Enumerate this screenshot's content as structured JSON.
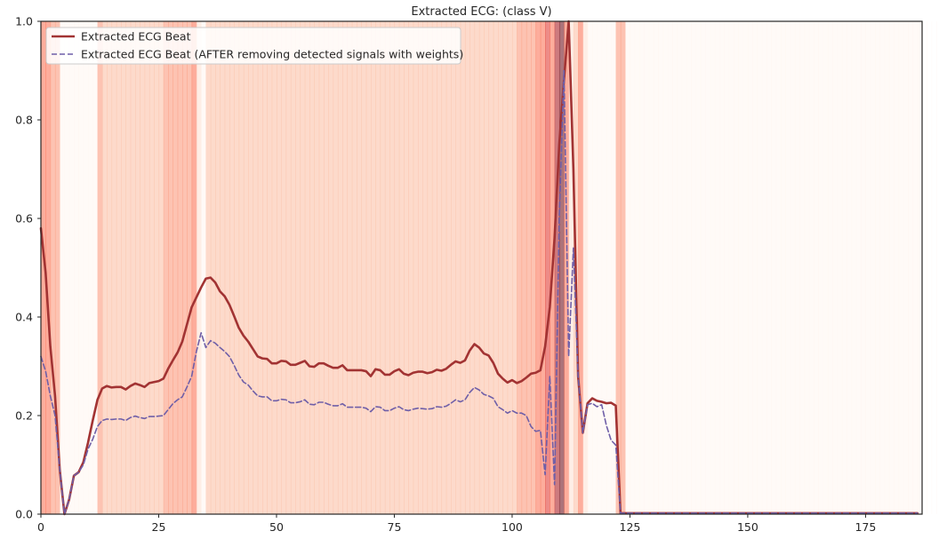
{
  "chart_data": {
    "type": "line",
    "title": "Extracted ECG: (class V)",
    "xlabel": "",
    "ylabel": "",
    "xlim": [
      0,
      187
    ],
    "ylim": [
      0,
      1.0
    ],
    "x_ticks": [
      0,
      25,
      50,
      75,
      100,
      125,
      150,
      175
    ],
    "y_ticks": [
      0.0,
      0.2,
      0.4,
      0.6,
      0.8,
      1.0
    ],
    "grid": false,
    "legend_position": "top-left",
    "series": [
      {
        "name": "Extracted ECG Beat",
        "color": "#a23333",
        "style": "solid",
        "points": [
          [
            0,
            0.58
          ],
          [
            1,
            0.49
          ],
          [
            2,
            0.34
          ],
          [
            3,
            0.24
          ],
          [
            4,
            0.09
          ],
          [
            5,
            0.0
          ],
          [
            6,
            0.03
          ],
          [
            7,
            0.078
          ],
          [
            8,
            0.085
          ],
          [
            9,
            0.105
          ],
          [
            10,
            0.145
          ],
          [
            11,
            0.19
          ],
          [
            12,
            0.232
          ],
          [
            13,
            0.255
          ],
          [
            14,
            0.26
          ],
          [
            15,
            0.257
          ],
          [
            16,
            0.258
          ],
          [
            17,
            0.258
          ],
          [
            18,
            0.253
          ],
          [
            19,
            0.26
          ],
          [
            20,
            0.265
          ],
          [
            21,
            0.262
          ],
          [
            22,
            0.258
          ],
          [
            23,
            0.266
          ],
          [
            24,
            0.268
          ],
          [
            25,
            0.27
          ],
          [
            26,
            0.275
          ],
          [
            27,
            0.295
          ],
          [
            28,
            0.312
          ],
          [
            29,
            0.328
          ],
          [
            30,
            0.35
          ],
          [
            31,
            0.385
          ],
          [
            32,
            0.42
          ],
          [
            33,
            0.44
          ],
          [
            34,
            0.46
          ],
          [
            35,
            0.478
          ],
          [
            36,
            0.48
          ],
          [
            37,
            0.47
          ],
          [
            38,
            0.452
          ],
          [
            39,
            0.442
          ],
          [
            40,
            0.425
          ],
          [
            41,
            0.402
          ],
          [
            42,
            0.378
          ],
          [
            43,
            0.362
          ],
          [
            44,
            0.35
          ],
          [
            45,
            0.335
          ],
          [
            46,
            0.32
          ],
          [
            47,
            0.316
          ],
          [
            48,
            0.315
          ],
          [
            49,
            0.306
          ],
          [
            50,
            0.306
          ],
          [
            51,
            0.311
          ],
          [
            52,
            0.31
          ],
          [
            53,
            0.303
          ],
          [
            54,
            0.303
          ],
          [
            55,
            0.307
          ],
          [
            56,
            0.311
          ],
          [
            57,
            0.3
          ],
          [
            58,
            0.299
          ],
          [
            59,
            0.306
          ],
          [
            60,
            0.306
          ],
          [
            61,
            0.301
          ],
          [
            62,
            0.297
          ],
          [
            63,
            0.297
          ],
          [
            64,
            0.302
          ],
          [
            65,
            0.292
          ],
          [
            66,
            0.292
          ],
          [
            67,
            0.292
          ],
          [
            68,
            0.292
          ],
          [
            69,
            0.29
          ],
          [
            70,
            0.28
          ],
          [
            71,
            0.294
          ],
          [
            72,
            0.292
          ],
          [
            73,
            0.283
          ],
          [
            74,
            0.283
          ],
          [
            75,
            0.29
          ],
          [
            76,
            0.294
          ],
          [
            77,
            0.285
          ],
          [
            78,
            0.282
          ],
          [
            79,
            0.287
          ],
          [
            80,
            0.289
          ],
          [
            81,
            0.289
          ],
          [
            82,
            0.286
          ],
          [
            83,
            0.288
          ],
          [
            84,
            0.293
          ],
          [
            85,
            0.291
          ],
          [
            86,
            0.295
          ],
          [
            87,
            0.303
          ],
          [
            88,
            0.31
          ],
          [
            89,
            0.307
          ],
          [
            90,
            0.312
          ],
          [
            91,
            0.332
          ],
          [
            92,
            0.345
          ],
          [
            93,
            0.338
          ],
          [
            94,
            0.326
          ],
          [
            95,
            0.322
          ],
          [
            96,
            0.307
          ],
          [
            97,
            0.285
          ],
          [
            98,
            0.275
          ],
          [
            99,
            0.267
          ],
          [
            100,
            0.272
          ],
          [
            101,
            0.266
          ],
          [
            102,
            0.27
          ],
          [
            103,
            0.277
          ],
          [
            104,
            0.285
          ],
          [
            105,
            0.287
          ],
          [
            106,
            0.292
          ],
          [
            107,
            0.34
          ],
          [
            108,
            0.42
          ],
          [
            109,
            0.56
          ],
          [
            110,
            0.75
          ],
          [
            111,
            0.88
          ],
          [
            112,
            1.0
          ],
          [
            113,
            0.7
          ],
          [
            114,
            0.28
          ],
          [
            115,
            0.165
          ],
          [
            116,
            0.225
          ],
          [
            117,
            0.235
          ],
          [
            118,
            0.23
          ],
          [
            119,
            0.228
          ],
          [
            120,
            0.225
          ],
          [
            121,
            0.226
          ],
          [
            122,
            0.22
          ],
          [
            123,
            0.002
          ],
          [
            186,
            0.002
          ]
        ]
      },
      {
        "name": "Extracted ECG Beat (AFTER removing detected signals with weights)",
        "color": "#6f5fa8",
        "style": "dashed",
        "points": [
          [
            0,
            0.32
          ],
          [
            1,
            0.29
          ],
          [
            2,
            0.24
          ],
          [
            3,
            0.2
          ],
          [
            4,
            0.09
          ],
          [
            5,
            0.0
          ],
          [
            6,
            0.03
          ],
          [
            7,
            0.078
          ],
          [
            8,
            0.085
          ],
          [
            9,
            0.1
          ],
          [
            10,
            0.132
          ],
          [
            11,
            0.152
          ],
          [
            12,
            0.178
          ],
          [
            13,
            0.19
          ],
          [
            14,
            0.193
          ],
          [
            15,
            0.192
          ],
          [
            16,
            0.193
          ],
          [
            17,
            0.193
          ],
          [
            18,
            0.19
          ],
          [
            19,
            0.196
          ],
          [
            20,
            0.199
          ],
          [
            21,
            0.196
          ],
          [
            22,
            0.194
          ],
          [
            23,
            0.198
          ],
          [
            24,
            0.198
          ],
          [
            25,
            0.199
          ],
          [
            26,
            0.2
          ],
          [
            27,
            0.212
          ],
          [
            28,
            0.224
          ],
          [
            29,
            0.232
          ],
          [
            30,
            0.238
          ],
          [
            31,
            0.258
          ],
          [
            32,
            0.28
          ],
          [
            33,
            0.33
          ],
          [
            34,
            0.368
          ],
          [
            35,
            0.338
          ],
          [
            36,
            0.352
          ],
          [
            37,
            0.347
          ],
          [
            38,
            0.338
          ],
          [
            39,
            0.33
          ],
          [
            40,
            0.32
          ],
          [
            41,
            0.302
          ],
          [
            42,
            0.282
          ],
          [
            43,
            0.268
          ],
          [
            44,
            0.262
          ],
          [
            45,
            0.25
          ],
          [
            46,
            0.24
          ],
          [
            47,
            0.238
          ],
          [
            48,
            0.238
          ],
          [
            49,
            0.23
          ],
          [
            50,
            0.23
          ],
          [
            51,
            0.233
          ],
          [
            52,
            0.232
          ],
          [
            53,
            0.226
          ],
          [
            54,
            0.226
          ],
          [
            55,
            0.228
          ],
          [
            56,
            0.232
          ],
          [
            57,
            0.223
          ],
          [
            58,
            0.222
          ],
          [
            59,
            0.227
          ],
          [
            60,
            0.227
          ],
          [
            61,
            0.223
          ],
          [
            62,
            0.22
          ],
          [
            63,
            0.22
          ],
          [
            64,
            0.224
          ],
          [
            65,
            0.217
          ],
          [
            66,
            0.217
          ],
          [
            67,
            0.217
          ],
          [
            68,
            0.217
          ],
          [
            69,
            0.215
          ],
          [
            70,
            0.208
          ],
          [
            71,
            0.218
          ],
          [
            72,
            0.217
          ],
          [
            73,
            0.21
          ],
          [
            74,
            0.21
          ],
          [
            75,
            0.215
          ],
          [
            76,
            0.218
          ],
          [
            77,
            0.212
          ],
          [
            78,
            0.21
          ],
          [
            79,
            0.213
          ],
          [
            80,
            0.215
          ],
          [
            81,
            0.214
          ],
          [
            82,
            0.213
          ],
          [
            83,
            0.214
          ],
          [
            84,
            0.218
          ],
          [
            85,
            0.217
          ],
          [
            86,
            0.219
          ],
          [
            87,
            0.225
          ],
          [
            88,
            0.232
          ],
          [
            89,
            0.228
          ],
          [
            90,
            0.232
          ],
          [
            91,
            0.247
          ],
          [
            92,
            0.257
          ],
          [
            93,
            0.252
          ],
          [
            94,
            0.243
          ],
          [
            95,
            0.24
          ],
          [
            96,
            0.235
          ],
          [
            97,
            0.218
          ],
          [
            98,
            0.212
          ],
          [
            99,
            0.205
          ],
          [
            100,
            0.21
          ],
          [
            101,
            0.205
          ],
          [
            102,
            0.205
          ],
          [
            103,
            0.2
          ],
          [
            104,
            0.178
          ],
          [
            105,
            0.168
          ],
          [
            106,
            0.17
          ],
          [
            107,
            0.08
          ],
          [
            108,
            0.28
          ],
          [
            109,
            0.06
          ],
          [
            110,
            0.6
          ],
          [
            111,
            0.9
          ],
          [
            112,
            0.32
          ],
          [
            113,
            0.54
          ],
          [
            114,
            0.28
          ],
          [
            115,
            0.165
          ],
          [
            116,
            0.222
          ],
          [
            117,
            0.225
          ],
          [
            118,
            0.218
          ],
          [
            119,
            0.222
          ],
          [
            120,
            0.18
          ],
          [
            121,
            0.15
          ],
          [
            122,
            0.14
          ],
          [
            123,
            0.002
          ],
          [
            186,
            0.002
          ]
        ]
      }
    ],
    "heatmap_colors": [
      "#fff5f0",
      "#fee0d2",
      "#fcbba1",
      "#fc9272",
      "#fb6a4a",
      "#de2d26",
      "#a50f15",
      "#67000d"
    ],
    "heatmap_alpha": 0.55,
    "background_weights": [
      0.5,
      0.5,
      0.45,
      0.45,
      0.1,
      0.05,
      0.05,
      0.05,
      0.05,
      0.05,
      0.05,
      0.1,
      0.4,
      0.35,
      0.3,
      0.3,
      0.3,
      0.3,
      0.3,
      0.3,
      0.3,
      0.3,
      0.3,
      0.32,
      0.35,
      0.35,
      0.38,
      0.4,
      0.4,
      0.4,
      0.45,
      0.45,
      0.5,
      0.15,
      0.05,
      0.3,
      0.3,
      0.3,
      0.3,
      0.3,
      0.3,
      0.3,
      0.3,
      0.3,
      0.3,
      0.3,
      0.3,
      0.3,
      0.3,
      0.3,
      0.3,
      0.3,
      0.3,
      0.3,
      0.3,
      0.3,
      0.3,
      0.3,
      0.3,
      0.3,
      0.3,
      0.3,
      0.3,
      0.3,
      0.3,
      0.3,
      0.3,
      0.3,
      0.3,
      0.3,
      0.3,
      0.3,
      0.3,
      0.3,
      0.3,
      0.3,
      0.3,
      0.3,
      0.3,
      0.3,
      0.3,
      0.3,
      0.3,
      0.3,
      0.3,
      0.3,
      0.3,
      0.3,
      0.3,
      0.3,
      0.3,
      0.3,
      0.3,
      0.3,
      0.3,
      0.3,
      0.3,
      0.3,
      0.32,
      0.35,
      0.35,
      0.38,
      0.4,
      0.4,
      0.45,
      0.5,
      0.6,
      0.7,
      0.55,
      0.8,
      0.95,
      0.55,
      0.2,
      0.35,
      0.5,
      0.15,
      0.1,
      0.05,
      0.05,
      0.05,
      0.05,
      0.1,
      0.45,
      0.45,
      0.02,
      0.02,
      0.02,
      0.02,
      0.02,
      0.02,
      0.02,
      0.02,
      0.02,
      0.02,
      0.02,
      0.02,
      0.02,
      0.02,
      0.02,
      0.02,
      0.02,
      0.02,
      0.02,
      0.02,
      0.02,
      0.02,
      0.02,
      0.02,
      0.02,
      0.02,
      0.02,
      0.02,
      0.02,
      0.02,
      0.02,
      0.02,
      0.02,
      0.02,
      0.02,
      0.02,
      0.02,
      0.02,
      0.02,
      0.02,
      0.02,
      0.02,
      0.02,
      0.02,
      0.02,
      0.02,
      0.02,
      0.02,
      0.02,
      0.02,
      0.02,
      0.02,
      0.02,
      0.02,
      0.02,
      0.02,
      0.02,
      0.02,
      0.02,
      0.02,
      0.02,
      0.02,
      0.02,
      0.02,
      0.02,
      0.02,
      0.02,
      0.02,
      0.02,
      0.02,
      0.02,
      0.02,
      0.02
    ]
  }
}
